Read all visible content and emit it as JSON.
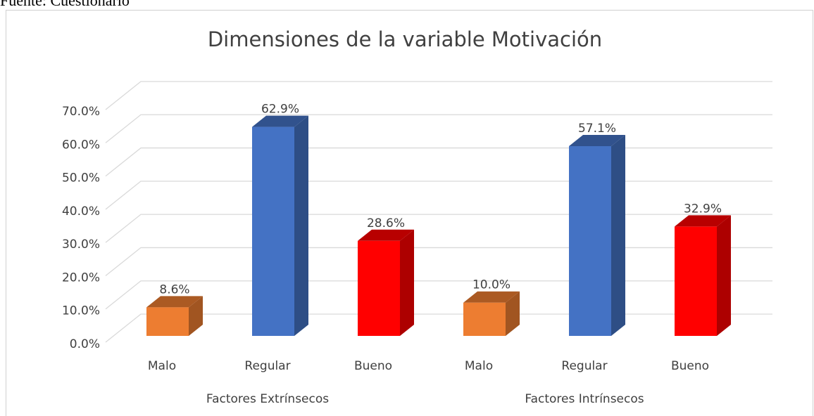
{
  "source": "Fuente: Cuestionario",
  "chart_data": {
    "type": "bar3d",
    "title": "Dimensiones de la variable Motivación",
    "categories": [
      "Malo",
      "Regular",
      "Bueno",
      "Malo",
      "Regular",
      "Bueno"
    ],
    "groups": [
      "Factores Extrínsecos",
      "Factores Intrínsecos"
    ],
    "values": [
      8.6,
      62.9,
      28.6,
      10.0,
      57.1,
      32.9
    ],
    "value_labels": [
      "8.6%",
      "62.9%",
      "28.6%",
      "10.0%",
      "57.1%",
      "32.9%"
    ],
    "colors": [
      "#ED7D31",
      "#4472C4",
      "#FF0000",
      "#ED7D31",
      "#4472C4",
      "#FF0000"
    ],
    "ylim": [
      0,
      70
    ],
    "yticks": [
      {
        "value": 0,
        "label": "0.0%"
      },
      {
        "value": 10,
        "label": "10.0%"
      },
      {
        "value": 20,
        "label": "20.0%"
      },
      {
        "value": 30,
        "label": "30.0%"
      },
      {
        "value": 40,
        "label": "40.0%"
      },
      {
        "value": 50,
        "label": "50.0%"
      },
      {
        "value": 60,
        "label": "60.0%"
      },
      {
        "value": 70,
        "label": "70.0%"
      }
    ],
    "grid": true
  }
}
